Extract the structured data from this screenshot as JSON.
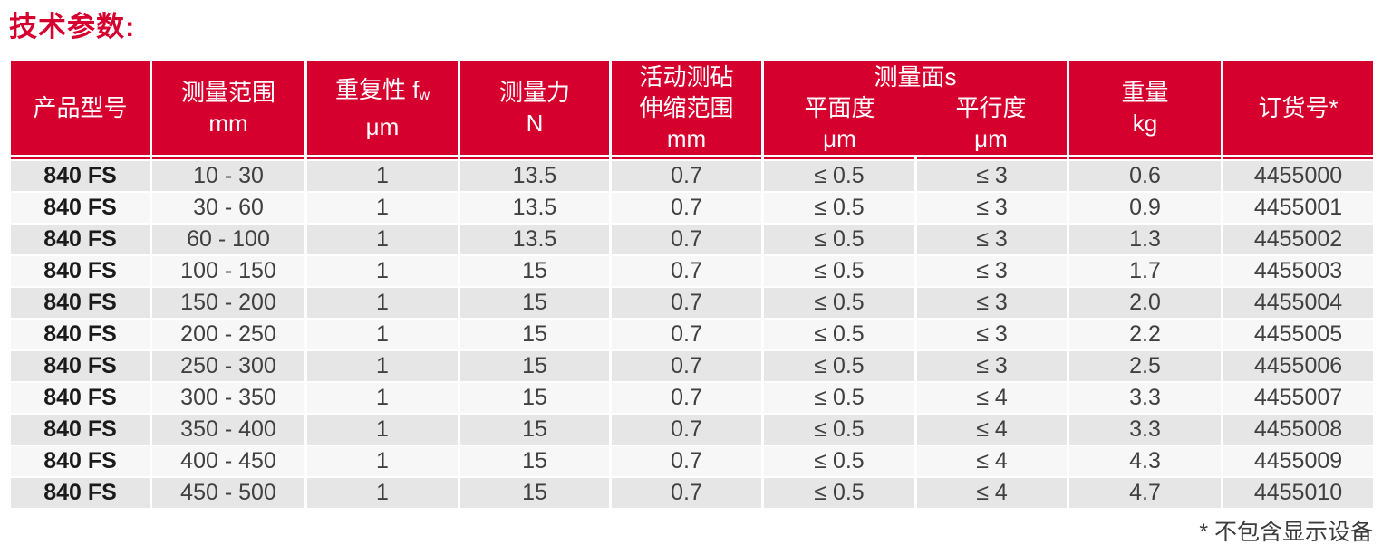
{
  "title": "技术参数:",
  "footnote": "* 不包含显示设备",
  "colors": {
    "brand_red": "#d6002f",
    "row_dark": "#e6e6e6",
    "row_light": "#f7f7f7",
    "header_text": "#ffffff",
    "body_text": "#404040"
  },
  "table": {
    "header": {
      "product_model": "产品型号",
      "measuring_range": "测量范围",
      "measuring_range_unit": "mm",
      "repeatability": "重复性 f",
      "repeatability_sub": "w",
      "repeatability_unit": "μm",
      "measuring_force": "测量力",
      "measuring_force_unit": "N",
      "anvil_line1": "活动测砧",
      "anvil_line2": "伸缩范围",
      "anvil_unit": "mm",
      "faces_group": "测量面s",
      "flatness": "平面度",
      "flatness_unit": "μm",
      "parallelism": "平行度",
      "parallelism_unit": "μm",
      "weight": "重量",
      "weight_unit": "kg",
      "order_no": "订货号*"
    },
    "rows": [
      {
        "model": "840 FS",
        "range": "10 - 30",
        "repeatability": "1",
        "force": "13.5",
        "anvil": "0.7",
        "flatness": "≤ 0.5",
        "parallelism": "≤ 3",
        "weight": "0.6",
        "order": "4455000"
      },
      {
        "model": "840 FS",
        "range": "30 - 60",
        "repeatability": "1",
        "force": "13.5",
        "anvil": "0.7",
        "flatness": "≤ 0.5",
        "parallelism": "≤ 3",
        "weight": "0.9",
        "order": "4455001"
      },
      {
        "model": "840 FS",
        "range": "60 - 100",
        "repeatability": "1",
        "force": "13.5",
        "anvil": "0.7",
        "flatness": "≤ 0.5",
        "parallelism": "≤ 3",
        "weight": "1.3",
        "order": "4455002"
      },
      {
        "model": "840 FS",
        "range": "100 - 150",
        "repeatability": "1",
        "force": "15",
        "anvil": "0.7",
        "flatness": "≤ 0.5",
        "parallelism": "≤ 3",
        "weight": "1.7",
        "order": "4455003"
      },
      {
        "model": "840 FS",
        "range": "150 - 200",
        "repeatability": "1",
        "force": "15",
        "anvil": "0.7",
        "flatness": "≤ 0.5",
        "parallelism": "≤ 3",
        "weight": "2.0",
        "order": "4455004"
      },
      {
        "model": "840 FS",
        "range": "200 - 250",
        "repeatability": "1",
        "force": "15",
        "anvil": "0.7",
        "flatness": "≤ 0.5",
        "parallelism": "≤ 3",
        "weight": "2.2",
        "order": "4455005"
      },
      {
        "model": "840 FS",
        "range": "250 - 300",
        "repeatability": "1",
        "force": "15",
        "anvil": "0.7",
        "flatness": "≤ 0.5",
        "parallelism": "≤ 3",
        "weight": "2.5",
        "order": "4455006"
      },
      {
        "model": "840 FS",
        "range": "300 - 350",
        "repeatability": "1",
        "force": "15",
        "anvil": "0.7",
        "flatness": "≤ 0.5",
        "parallelism": "≤ 4",
        "weight": "3.3",
        "order": "4455007"
      },
      {
        "model": "840 FS",
        "range": "350 - 400",
        "repeatability": "1",
        "force": "15",
        "anvil": "0.7",
        "flatness": "≤ 0.5",
        "parallelism": "≤ 4",
        "weight": "3.3",
        "order": "4455008"
      },
      {
        "model": "840 FS",
        "range": "400 - 450",
        "repeatability": "1",
        "force": "15",
        "anvil": "0.7",
        "flatness": "≤ 0.5",
        "parallelism": "≤ 4",
        "weight": "4.3",
        "order": "4455009"
      },
      {
        "model": "840 FS",
        "range": "450 - 500",
        "repeatability": "1",
        "force": "15",
        "anvil": "0.7",
        "flatness": "≤ 0.5",
        "parallelism": "≤ 4",
        "weight": "4.7",
        "order": "4455010"
      }
    ]
  }
}
